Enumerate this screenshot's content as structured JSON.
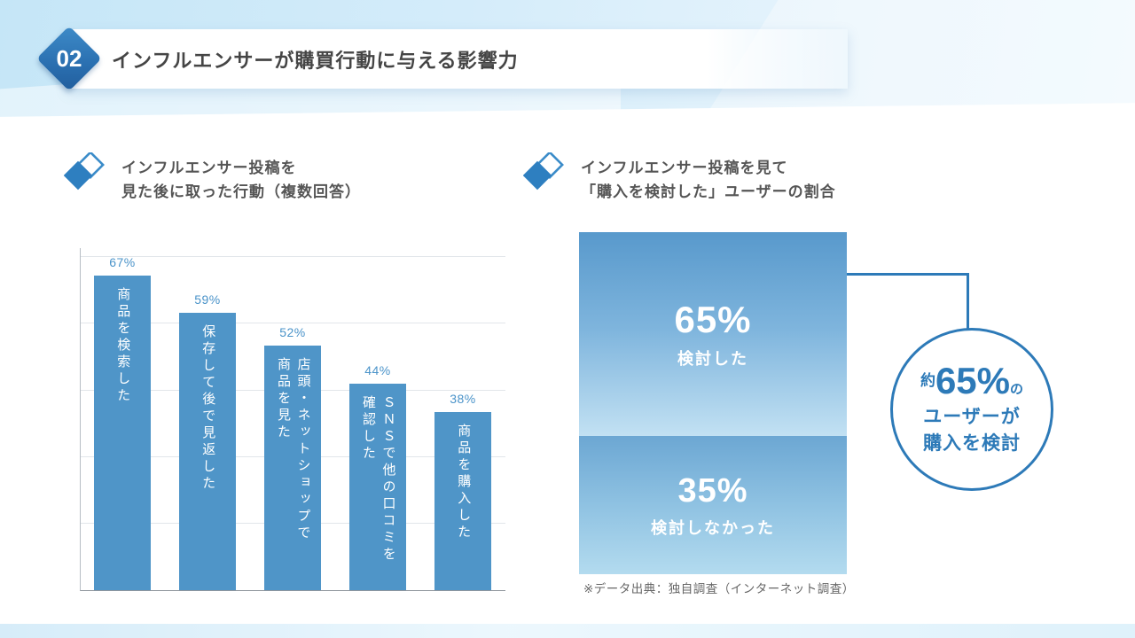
{
  "slide": {
    "number": "02",
    "title": "インフルエンサーが購買行動に与える影響力"
  },
  "left_section": {
    "heading": [
      "インフルエンサー投稿を",
      "見た後に取った行動（複数回答）"
    ]
  },
  "right_section": {
    "heading": [
      "インフルエンサー投稿を見て",
      "「購入を検討した」ユーザーの割合"
    ],
    "callout": {
      "prefix": "約",
      "percent": "65%",
      "suffix": "の",
      "line2": "ユーザーが",
      "line3": "購入を検討"
    },
    "footnote": "※データ出典：独自調査（インターネット調査）"
  },
  "chart_data": [
    {
      "type": "bar",
      "title": "インフルエンサー投稿を見た後に取った行動（複数回答）",
      "orientation": "vertical",
      "categories": [
        "商品を検索した",
        "保存して後で見返した",
        "店頭・ネットショップで商品を見た",
        "SNSで他の口コミを確認した",
        "商品を購入した"
      ],
      "values": [
        67,
        59,
        52,
        44,
        38
      ],
      "value_labels": [
        "67%",
        "59%",
        "52%",
        "44%",
        "38%"
      ],
      "display_labels": [
        "商品を検索した",
        "保存して後で見返した",
        "店頭・ネットショップで\n商品を見た",
        "ＳＮＳで他の口コミを\n確認した",
        "商品を購入した"
      ],
      "unit": "%",
      "ylim": [
        0,
        73
      ],
      "grid": true,
      "bar_color": "#4f95c8"
    },
    {
      "type": "bar",
      "subtype": "stacked-percentage",
      "title": "インフルエンサー投稿を見て「購入を検討した」ユーザーの割合",
      "categories": [
        "検討した",
        "検討しなかった"
      ],
      "values": [
        65,
        35
      ],
      "value_labels": [
        "65%",
        "35%"
      ],
      "unit": "%"
    }
  ],
  "colors": {
    "accent_blue": "#2d7ab8",
    "bar_blue": "#4f95c8",
    "value_label_blue": "#4a93c9",
    "band_blue": "#c5e6f7",
    "title_text": "#454545",
    "heading_text": "#555555",
    "footnote_text": "#666666"
  }
}
